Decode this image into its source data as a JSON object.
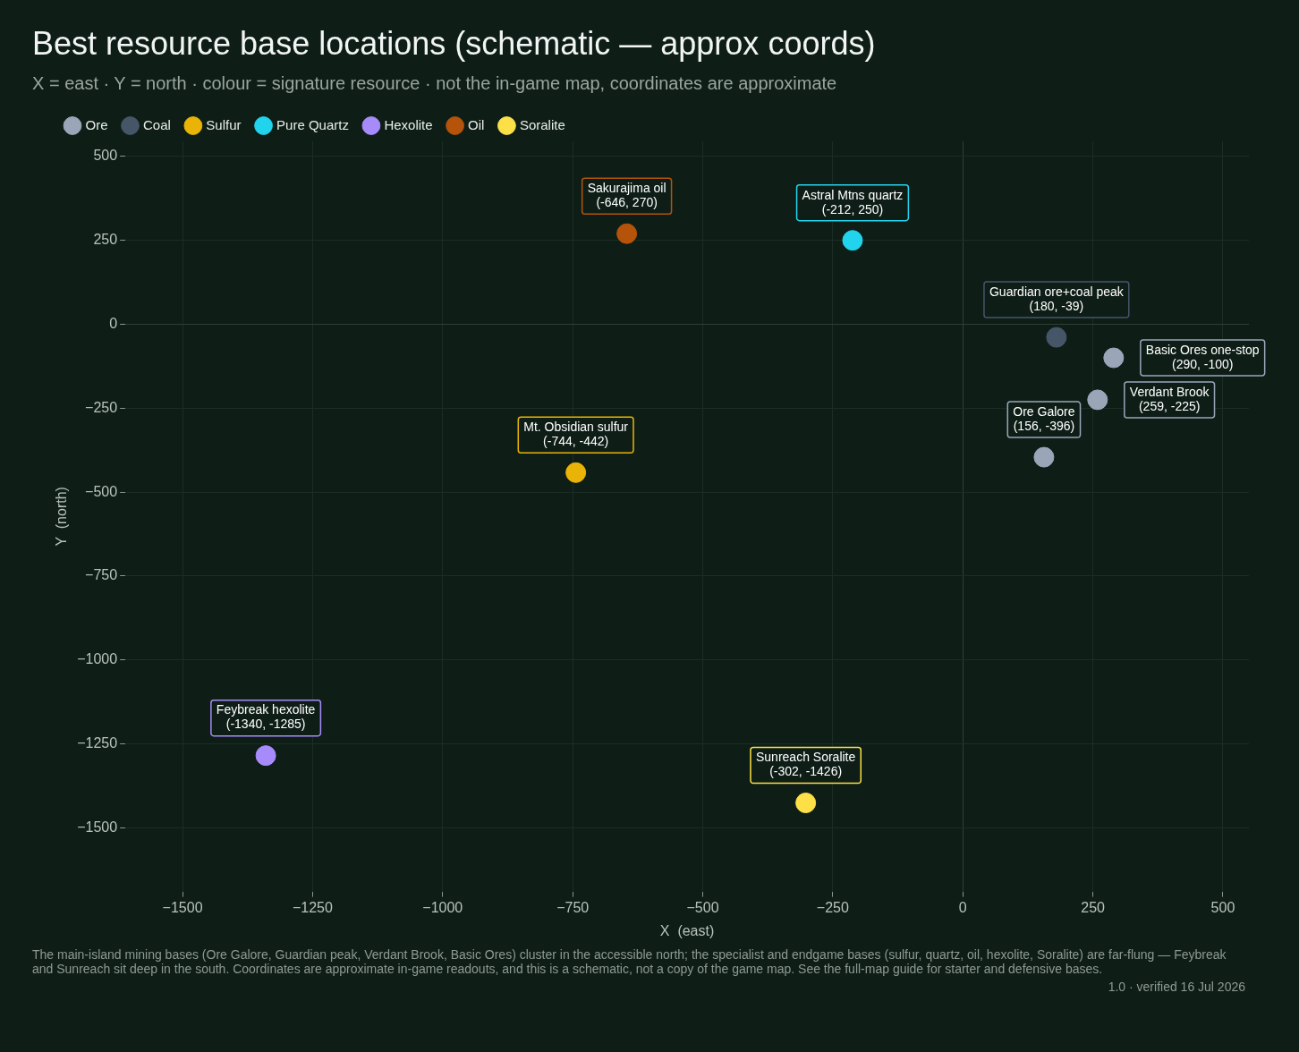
{
  "chart_data": {
    "type": "scatter",
    "title": "Best resource base locations (schematic — approx coords)",
    "subtitle": "X = east · Y = north · colour = signature resource · not the in-game map, coordinates are approximate",
    "xlabel": "X  (east)",
    "ylabel": "Y  (north)",
    "xlim": [
      -1610,
      550
    ],
    "xticks": [
      -1500,
      -1250,
      -1000,
      -750,
      -500,
      -250,
      0,
      250,
      500
    ],
    "ylim": [
      -1690,
      545
    ],
    "yticks": [
      500,
      250,
      0,
      -250,
      -500,
      -750,
      -1000,
      -1250,
      -1500
    ],
    "grid": true,
    "legend": "top left",
    "marker": "circle",
    "series": [
      {
        "name": "Ore",
        "color": "#9aa5b8",
        "x": [
          290,
          259,
          156
        ],
        "values": [
          -100,
          -225,
          -396
        ]
      },
      {
        "name": "Coal",
        "color": "#475569",
        "x": [
          180
        ],
        "values": [
          -39
        ]
      },
      {
        "name": "Sulfur",
        "color": "#eab308",
        "x": [
          -744
        ],
        "values": [
          -442
        ]
      },
      {
        "name": "Pure Quartz",
        "color": "#22d3ee",
        "x": [
          -212
        ],
        "values": [
          250
        ]
      },
      {
        "name": "Hexolite",
        "color": "#a78bfa",
        "x": [
          -1340
        ],
        "values": [
          -1285
        ]
      },
      {
        "name": "Oil",
        "color": "#b45309",
        "x": [
          -646
        ],
        "values": [
          270
        ]
      },
      {
        "name": "Soralite",
        "color": "#fde047",
        "x": [
          -302
        ],
        "values": [
          -1426
        ]
      }
    ],
    "annotations": [
      {
        "text": "Sakurajima oil\n(-646, 270)",
        "x": -646,
        "y": 270
      },
      {
        "text": "Astral Mtns quartz\n(-212, 250)",
        "x": -212,
        "y": 250
      },
      {
        "text": "Guardian ore+coal peak\n(180, -39)",
        "x": 180,
        "y": -39
      },
      {
        "text": "Basic Ores one-stop\n(290, -100)",
        "x": 290,
        "y": -100
      },
      {
        "text": "Verdant Brook\n(259, -225)",
        "x": 259,
        "y": -225
      },
      {
        "text": "Mt. Obsidian sulfur\n(-744, -442)",
        "x": -744,
        "y": -442
      },
      {
        "text": "Ore Galore\n(156, -396)",
        "x": 156,
        "y": -396
      },
      {
        "text": "Feybreak hexolite\n(-1340, -1285)",
        "x": -1340,
        "y": -1285
      },
      {
        "text": "Sunreach Soralite\n(-302, -1426)",
        "x": -302,
        "y": -1426
      },
      "The main-island mining bases (Ore Galore, Guardian peak, Verdant Brook, Basic Ores) cluster in the accessible north; the specialist and endgame bases (sulfur, quartz, oil, hexolite, Soralite) are far-flung — Feybreak and Sunreach sit deep in the south. Coordinates are approximate in-game readouts, and this is a schematic, not a copy of the game map. See the full-map guide for starter and defensive bases.",
      "1.0 · verified 16 Jul 2026"
    ]
  }
}
